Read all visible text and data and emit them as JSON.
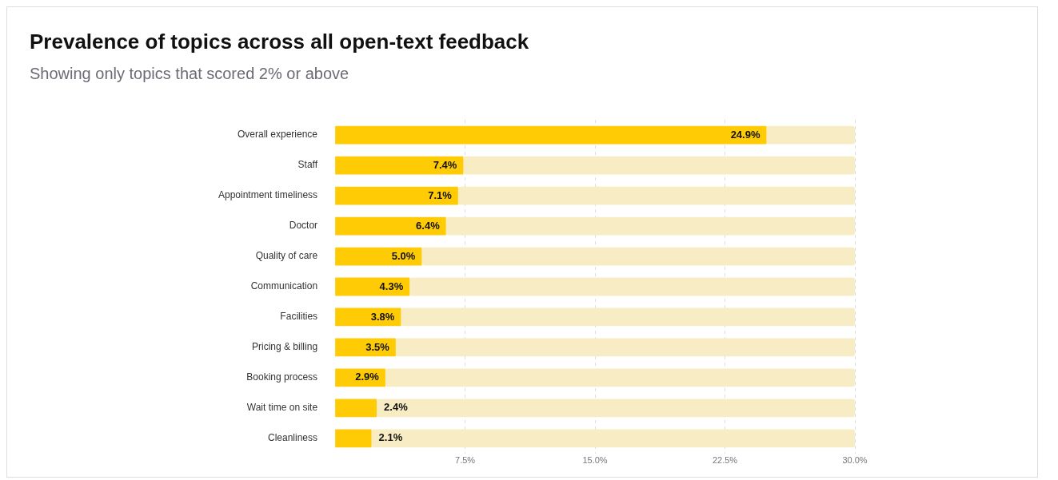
{
  "chart_data": {
    "type": "bar",
    "orientation": "horizontal",
    "title": "Prevalence of topics across all open-text feedback",
    "subtitle": "Showing only topics that scored 2% or above",
    "categories": [
      "Overall experience",
      "Staff",
      "Appointment timeliness",
      "Doctor",
      "Quality of care",
      "Communication",
      "Facilities",
      "Pricing & billing",
      "Booking process",
      "Wait time on site",
      "Cleanliness"
    ],
    "value_labels": [
      "24.9%",
      "7.4%",
      "7.1%",
      "6.4%",
      "5.0%",
      "4.3%",
      "3.8%",
      "3.5%",
      "2.9%",
      "2.4%",
      "2.1%"
    ],
    "series": [
      {
        "color": "#ffcb05",
        "values": [
          24.9,
          7.4,
          7.1,
          6.4,
          5.0,
          4.3,
          3.8,
          3.5,
          2.9,
          2.4,
          2.1
        ]
      },
      {
        "color": "#f7ecc4",
        "values": [
          5.1,
          22.6,
          22.9,
          23.6,
          25.0,
          25.7,
          26.2,
          26.5,
          27.1,
          27.6,
          27.9
        ]
      }
    ],
    "stacked": true,
    "xlim": [
      0,
      30
    ],
    "xticks": [
      {
        "value": 7.5,
        "label": "7.5%"
      },
      {
        "value": 15,
        "label": "15.0%"
      },
      {
        "value": 22.5,
        "label": "22.5%"
      },
      {
        "value": 30,
        "label": "30.0%"
      }
    ],
    "grid": "x",
    "legend": false
  }
}
